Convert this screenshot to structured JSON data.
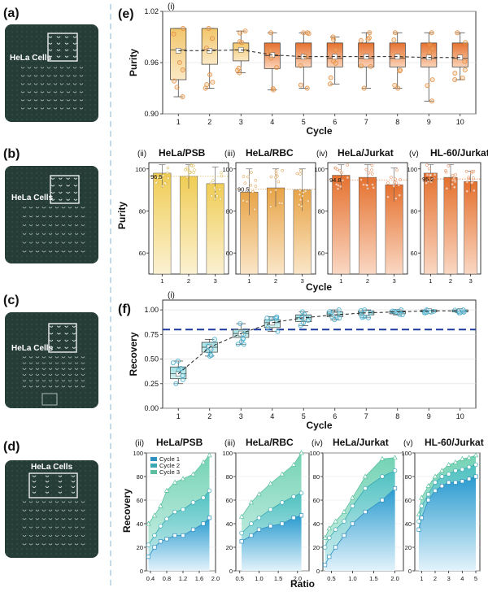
{
  "colors": {
    "purity_dark": "#e5712e",
    "purity_light": "#f5d76a",
    "recovery_dark": "#3aa6d0",
    "recovery_light": "#6fd3b8",
    "reference_line": "#1f3a9e",
    "microscope_bg": "#263d37"
  },
  "photos": [
    {
      "label": "(a)",
      "caption": "HeLa Cells"
    },
    {
      "label": "(b)",
      "caption": "HeLa Cells"
    },
    {
      "label": "(c)",
      "caption": "HeLa Cells"
    },
    {
      "label": "(d)",
      "caption": "HeLa Cells"
    }
  ],
  "panel_labels": {
    "e": "(e)",
    "f": "(f)"
  },
  "chart_data": [
    {
      "id": "e-i",
      "type": "box",
      "sublabel": "(i)",
      "xlabel": "Cycle",
      "ylabel": "Purity",
      "ylim": [
        0.9,
        1.02
      ],
      "yticks": [
        "0.90",
        "0.96",
        "1.02"
      ],
      "categories": [
        "1",
        "2",
        "3",
        "4",
        "5",
        "6",
        "7",
        "8",
        "9",
        "10"
      ],
      "boxes": [
        {
          "q1": 0.94,
          "q3": 1.0,
          "min": 0.92,
          "max": 1.0,
          "median": 0.975,
          "mean": 0.974
        },
        {
          "q1": 0.958,
          "q3": 1.0,
          "min": 0.93,
          "max": 1.0,
          "median": 0.975,
          "mean": 0.974
        },
        {
          "q1": 0.962,
          "q3": 0.983,
          "min": 0.948,
          "max": 0.997,
          "median": 0.975,
          "mean": 0.975
        },
        {
          "q1": 0.953,
          "q3": 0.983,
          "min": 0.928,
          "max": 0.995,
          "median": 0.968,
          "mean": 0.969
        },
        {
          "q1": 0.955,
          "q3": 0.983,
          "min": 0.93,
          "max": 0.995,
          "median": 0.965,
          "mean": 0.967
        },
        {
          "q1": 0.955,
          "q3": 0.983,
          "min": 0.935,
          "max": 0.99,
          "median": 0.965,
          "mean": 0.967
        },
        {
          "q1": 0.955,
          "q3": 0.983,
          "min": 0.93,
          "max": 0.995,
          "median": 0.965,
          "mean": 0.967
        },
        {
          "q1": 0.955,
          "q3": 0.983,
          "min": 0.93,
          "max": 0.995,
          "median": 0.965,
          "mean": 0.967
        },
        {
          "q1": 0.955,
          "q3": 0.983,
          "min": 0.915,
          "max": 0.995,
          "median": 0.965,
          "mean": 0.966
        },
        {
          "q1": 0.955,
          "q3": 0.983,
          "min": 0.94,
          "max": 0.995,
          "median": 0.965,
          "mean": 0.966
        }
      ]
    },
    {
      "id": "e-ii",
      "type": "bar",
      "sublabel": "(ii)",
      "title": "HeLa/PSB",
      "ylim": [
        50,
        103
      ],
      "yticks": [
        "60",
        "80",
        "100"
      ],
      "categories": [
        "1",
        "2",
        "3"
      ],
      "values": [
        98,
        96.5,
        93
      ],
      "errors": [
        7,
        6,
        8
      ],
      "annotation": "96.5",
      "annotation_value": 96.5
    },
    {
      "id": "e-iii",
      "type": "bar",
      "sublabel": "(iii)",
      "title": "HeLa/RBC",
      "ylim": [
        50,
        103
      ],
      "yticks": [
        "60",
        "80",
        "100"
      ],
      "categories": [
        "1",
        "2",
        "3"
      ],
      "values": [
        89,
        91,
        90
      ],
      "errors": [
        11,
        9,
        10
      ],
      "annotation": "90.5",
      "annotation_value": 90.5
    },
    {
      "id": "e-iv",
      "type": "bar",
      "sublabel": "(iv)",
      "title": "HeLa/Jurkat",
      "ylim": [
        50,
        103
      ],
      "yticks": [
        "60",
        "80",
        "100"
      ],
      "categories": [
        "1",
        "2",
        "3"
      ],
      "values": [
        97,
        96,
        92.5
      ],
      "errors": [
        7,
        6,
        8
      ],
      "annotation": "94.8",
      "annotation_value": 94.8
    },
    {
      "id": "e-v",
      "type": "bar",
      "sublabel": "(v)",
      "title": "HL-60/Jurkat",
      "ylim": [
        50,
        103
      ],
      "yticks": [
        "60",
        "80",
        "100"
      ],
      "categories": [
        "1",
        "2",
        "3"
      ],
      "values": [
        98,
        96,
        94
      ],
      "errors": [
        5,
        6,
        5
      ],
      "annotation": "95.2",
      "annotation_value": 95.2
    },
    {
      "id": "f-i",
      "type": "box",
      "sublabel": "(i)",
      "xlabel": "Cycle",
      "ylabel": "Recovery",
      "ylim": [
        0,
        1.1
      ],
      "yticks": [
        "0.00",
        "0.25",
        "0.50",
        "0.75",
        "1.00"
      ],
      "reference_line": 0.8,
      "categories": [
        "1",
        "2",
        "3",
        "4",
        "5",
        "6",
        "7",
        "8",
        "9",
        "10"
      ],
      "boxes": [
        {
          "q1": 0.3,
          "q3": 0.42,
          "min": 0.25,
          "max": 0.48,
          "median": 0.35,
          "mean": 0.35
        },
        {
          "q1": 0.57,
          "q3": 0.67,
          "min": 0.53,
          "max": 0.7,
          "median": 0.62,
          "mean": 0.62
        },
        {
          "q1": 0.72,
          "q3": 0.8,
          "min": 0.65,
          "max": 0.86,
          "median": 0.76,
          "mean": 0.76
        },
        {
          "q1": 0.82,
          "q3": 0.9,
          "min": 0.78,
          "max": 0.93,
          "median": 0.87,
          "mean": 0.87
        },
        {
          "q1": 0.88,
          "q3": 0.95,
          "min": 0.84,
          "max": 0.98,
          "median": 0.92,
          "mean": 0.92
        },
        {
          "q1": 0.93,
          "q3": 0.98,
          "min": 0.9,
          "max": 1.0,
          "median": 0.95,
          "mean": 0.95
        },
        {
          "q1": 0.95,
          "q3": 0.99,
          "min": 0.92,
          "max": 1.0,
          "median": 0.97,
          "mean": 0.97
        },
        {
          "q1": 0.96,
          "q3": 0.99,
          "min": 0.95,
          "max": 1.0,
          "median": 0.98,
          "mean": 0.98
        },
        {
          "q1": 0.98,
          "q3": 1.0,
          "min": 0.97,
          "max": 1.0,
          "median": 0.99,
          "mean": 0.99
        },
        {
          "q1": 0.98,
          "q3": 1.0,
          "min": 0.97,
          "max": 1.0,
          "median": 0.99,
          "mean": 0.99
        }
      ]
    },
    {
      "id": "f-ii",
      "type": "area",
      "sublabel": "(ii)",
      "title": "HeLa/PSB",
      "xlim": [
        0.3,
        2.0
      ],
      "xticks": [
        0.4,
        0.8,
        1.2,
        1.6,
        2.0
      ],
      "xtick_labels": [
        "0.4",
        "0.8",
        "1.2",
        "1.6",
        "2.0"
      ],
      "ylim": [
        0,
        100
      ],
      "yticks": [
        0,
        20,
        40,
        60,
        80,
        100
      ],
      "ytick_labels": [
        "0",
        "20",
        "40",
        "60",
        "80",
        "100"
      ],
      "legend": [
        "Cycle 1",
        "Cycle 2",
        "Cycle 3"
      ],
      "series": [
        {
          "name": "Cycle 1",
          "x": [
            0.35,
            0.5,
            0.65,
            0.8,
            1.0,
            1.2,
            1.45,
            1.7,
            1.85
          ],
          "y": [
            12,
            20,
            25,
            27,
            30,
            30,
            35,
            40,
            45
          ]
        },
        {
          "name": "Cycle 2",
          "x": [
            0.35,
            0.5,
            0.65,
            0.8,
            1.0,
            1.2,
            1.45,
            1.7,
            1.85
          ],
          "y": [
            22,
            30,
            38,
            44,
            50,
            52,
            58,
            62,
            68
          ]
        },
        {
          "name": "Cycle 3",
          "x": [
            0.35,
            0.5,
            0.65,
            0.8,
            1.0,
            1.2,
            1.45,
            1.7,
            1.85
          ],
          "y": [
            40,
            47,
            55,
            68,
            75,
            78,
            82,
            92,
            98
          ]
        }
      ]
    },
    {
      "id": "f-iii",
      "type": "area",
      "sublabel": "(iii)",
      "title": "HeLa/RBC",
      "xlim": [
        0.4,
        2.3
      ],
      "xticks": [
        0.5,
        1.0,
        1.5,
        2.0
      ],
      "xtick_labels": [
        "0.5",
        "1.0",
        "1.5",
        "2.0"
      ],
      "ylim": [
        0,
        100
      ],
      "yticks": [
        0,
        20,
        40,
        60,
        80,
        100
      ],
      "ytick_labels": [
        "0",
        "20",
        "40",
        "60",
        "80",
        "100"
      ],
      "series": [
        {
          "name": "Cycle 1",
          "x": [
            0.55,
            0.8,
            1.0,
            1.3,
            1.6,
            1.9,
            2.1
          ],
          "y": [
            25,
            30,
            35,
            38,
            40,
            45,
            47
          ]
        },
        {
          "name": "Cycle 2",
          "x": [
            0.55,
            0.8,
            1.0,
            1.3,
            1.6,
            1.9,
            2.1
          ],
          "y": [
            32,
            40,
            45,
            52,
            58,
            63,
            66
          ]
        },
        {
          "name": "Cycle 3",
          "x": [
            0.55,
            0.8,
            1.0,
            1.3,
            1.6,
            1.9,
            2.1
          ],
          "y": [
            46,
            58,
            65,
            74,
            82,
            90,
            100
          ]
        }
      ]
    },
    {
      "id": "f-iv",
      "type": "area",
      "sublabel": "(iv)",
      "title": "HeLa/Jurkat",
      "xlim": [
        0.3,
        2.2
      ],
      "xticks": [
        0.5,
        1.0,
        1.5,
        2.0
      ],
      "xtick_labels": [
        "0.5",
        "1.0",
        "1.5",
        "2.0"
      ],
      "ylim": [
        0,
        100
      ],
      "yticks": [
        0,
        20,
        40,
        60,
        80,
        100
      ],
      "ytick_labels": [
        "0",
        "20",
        "40",
        "60",
        "80",
        "100"
      ],
      "series": [
        {
          "name": "Cycle 1",
          "x": [
            0.35,
            0.45,
            0.6,
            0.8,
            1.0,
            1.3,
            1.7,
            2.0
          ],
          "y": [
            5,
            12,
            20,
            30,
            40,
            50,
            60,
            70
          ]
        },
        {
          "name": "Cycle 2",
          "x": [
            0.35,
            0.45,
            0.6,
            0.8,
            1.0,
            1.3,
            1.7,
            2.0
          ],
          "y": [
            20,
            28,
            35,
            42,
            55,
            70,
            80,
            85
          ]
        },
        {
          "name": "Cycle 3",
          "x": [
            0.35,
            0.45,
            0.6,
            0.8,
            1.0,
            1.3,
            1.7,
            2.0
          ],
          "y": [
            28,
            36,
            42,
            50,
            62,
            80,
            95,
            96
          ]
        }
      ]
    },
    {
      "id": "f-v",
      "type": "area",
      "sublabel": "(v)",
      "title": "HL-60/Jurkat",
      "xlim": [
        0.5,
        5.3
      ],
      "xticks": [
        1,
        2,
        3,
        4,
        5
      ],
      "xtick_labels": [
        "1",
        "2",
        "3",
        "4",
        "5"
      ],
      "ylim": [
        0,
        100
      ],
      "yticks": [
        0,
        20,
        40,
        60,
        80,
        100
      ],
      "ytick_labels": [
        "0",
        "20",
        "40",
        "60",
        "80",
        "100"
      ],
      "series": [
        {
          "name": "Cycle 1",
          "x": [
            0.8,
            1.0,
            1.5,
            2.0,
            2.5,
            3.0,
            3.5,
            4.0,
            4.5,
            5.0
          ],
          "y": [
            35,
            45,
            60,
            68,
            72,
            75,
            75,
            76,
            78,
            80
          ]
        },
        {
          "name": "Cycle 2",
          "x": [
            0.8,
            1.0,
            1.5,
            2.0,
            2.5,
            3.0,
            3.5,
            4.0,
            4.5,
            5.0
          ],
          "y": [
            42,
            55,
            65,
            75,
            80,
            82,
            85,
            86,
            88,
            90
          ]
        },
        {
          "name": "Cycle 3",
          "x": [
            0.8,
            1.0,
            1.5,
            2.0,
            2.5,
            3.0,
            3.5,
            4.0,
            4.5,
            5.0
          ],
          "y": [
            48,
            62,
            72,
            80,
            85,
            90,
            92,
            95,
            96,
            98
          ]
        }
      ]
    }
  ],
  "f_bottom_labels": {
    "ylabel": "Recovery",
    "xlabel": "Ratio",
    "bar_xlabel": "Cycle",
    "bar_ylabel": "Purity"
  }
}
